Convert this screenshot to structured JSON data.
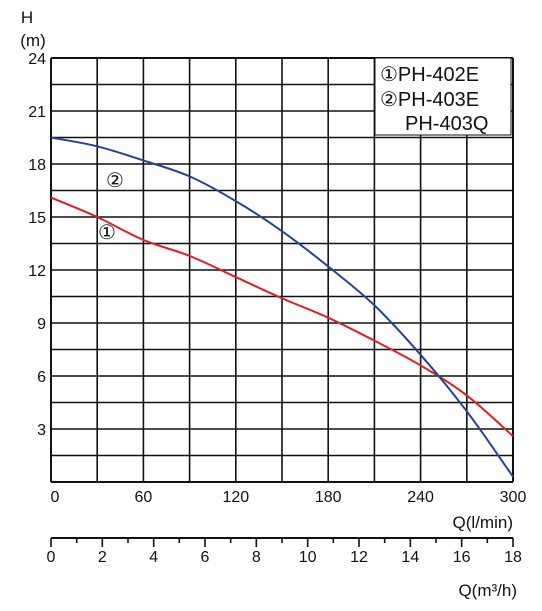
{
  "chart_data": {
    "type": "line",
    "x": [
      0,
      30,
      60,
      90,
      120,
      150,
      180,
      210,
      240,
      270,
      300
    ],
    "series": [
      {
        "name": "①PH-402E",
        "label_on_curve": "①",
        "color": "#dd1f26",
        "values": [
          16.1,
          15.0,
          13.7,
          12.8,
          11.6,
          10.4,
          9.3,
          8.0,
          6.6,
          4.9,
          2.6
        ]
      },
      {
        "name": "②PH-403E",
        "name_line2": "PH-403Q",
        "label_on_curve": "②",
        "color": "#27418f",
        "values": [
          19.5,
          19.0,
          18.2,
          17.3,
          15.9,
          14.2,
          12.2,
          10.0,
          7.2,
          4.0,
          0.3
        ]
      }
    ],
    "ylabel": "H",
    "ylabel_unit": "(m)",
    "xlabel": "Q(l/min)",
    "xlabel2": "Q(m³/h)",
    "ylim": [
      0,
      24
    ],
    "xlim": [
      0,
      300
    ],
    "x2lim": [
      0,
      18
    ],
    "y_ticks": [
      "3",
      "6",
      "9",
      "12",
      "15",
      "18",
      "21",
      "24"
    ],
    "y_zero_label": "0",
    "x_ticks": [
      "60",
      "120",
      "180",
      "240",
      "300"
    ],
    "x2_ticks": [
      "0",
      "2",
      "4",
      "6",
      "8",
      "10",
      "12",
      "14",
      "16",
      "18"
    ],
    "grid": true,
    "legend_position": "top-right",
    "colors": {
      "grid": "#111111",
      "ink": "#111111"
    }
  }
}
